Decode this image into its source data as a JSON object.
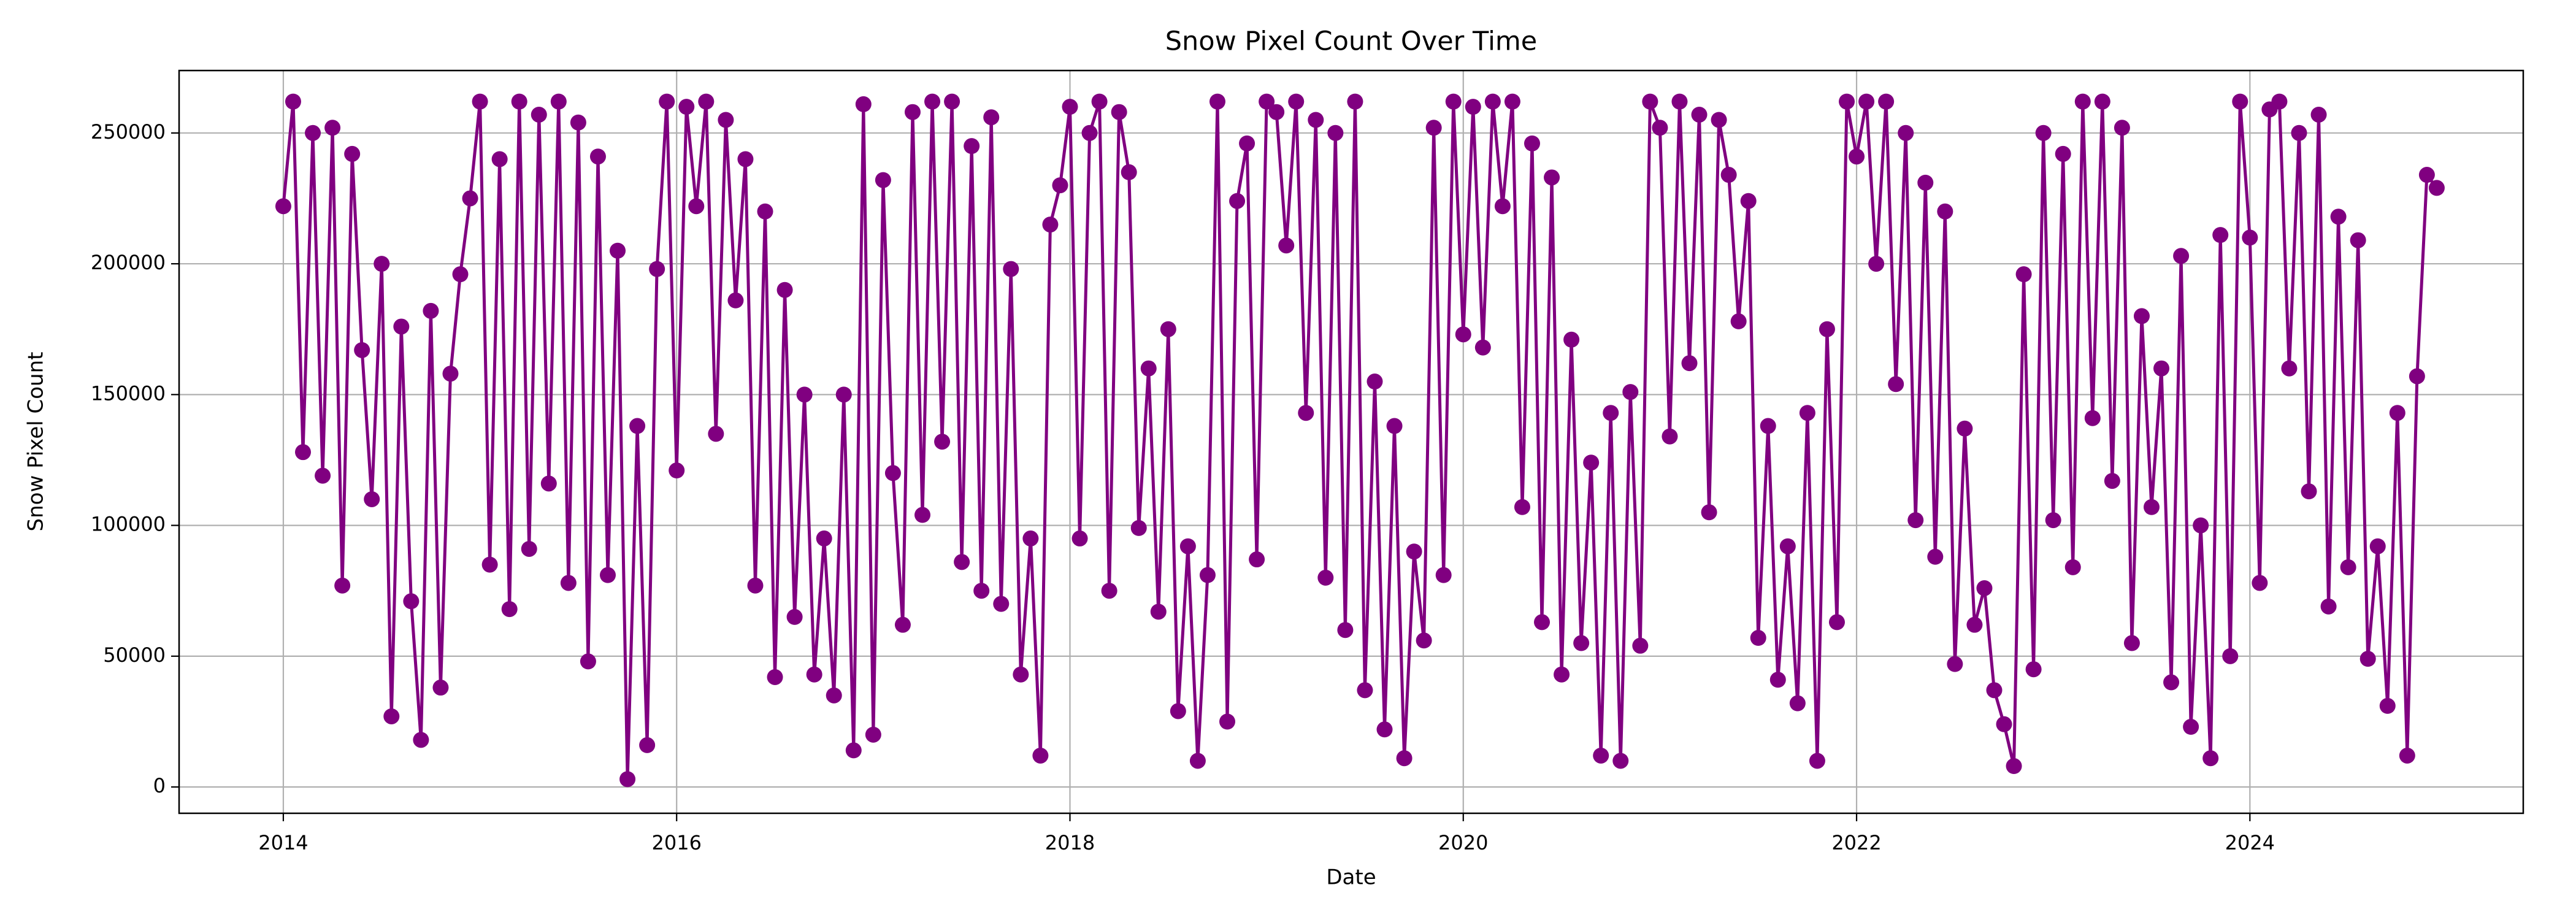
{
  "chart_data": {
    "type": "line",
    "title": "Snow Pixel Count Over Time",
    "x_label": "Date",
    "y_label": "Snow Pixel Count",
    "color": "#800080",
    "grid": true,
    "markers": true,
    "xlim": [
      2013.47,
      2025.39
    ],
    "xticks": [
      2014,
      2016,
      2018,
      2020,
      2022,
      2024
    ],
    "ylim": [
      -10050,
      273870
    ],
    "yticks": [
      0,
      50000,
      100000,
      150000,
      200000,
      250000
    ],
    "x": [
      2014.0,
      2014.05,
      2014.1,
      2014.15,
      2014.2,
      2014.25,
      2014.3,
      2014.35,
      2014.4,
      2014.45,
      2014.5,
      2014.55,
      2014.6,
      2014.65,
      2014.7,
      2014.75,
      2014.8,
      2014.85,
      2014.9,
      2014.95,
      2015.0,
      2015.05,
      2015.1,
      2015.15,
      2015.2,
      2015.25,
      2015.3,
      2015.35,
      2015.4,
      2015.45,
      2015.5,
      2015.55,
      2015.6,
      2015.65,
      2015.7,
      2015.75,
      2015.8,
      2015.85,
      2015.9,
      2015.95,
      2016.0,
      2016.05,
      2016.1,
      2016.15,
      2016.2,
      2016.25,
      2016.3,
      2016.35,
      2016.4,
      2016.45,
      2016.5,
      2016.55,
      2016.6,
      2016.65,
      2016.7,
      2016.75,
      2016.8,
      2016.85,
      2016.9,
      2016.95,
      2017.0,
      2017.05,
      2017.1,
      2017.15,
      2017.2,
      2017.25,
      2017.3,
      2017.35,
      2017.4,
      2017.45,
      2017.5,
      2017.55,
      2017.6,
      2017.65,
      2017.7,
      2017.75,
      2017.8,
      2017.85,
      2017.9,
      2017.95,
      2018.0,
      2018.05,
      2018.1,
      2018.15,
      2018.2,
      2018.25,
      2018.3,
      2018.35,
      2018.4,
      2018.45,
      2018.5,
      2018.55,
      2018.6,
      2018.65,
      2018.7,
      2018.75,
      2018.8,
      2018.85,
      2018.9,
      2018.95,
      2019.0,
      2019.05,
      2019.1,
      2019.15,
      2019.2,
      2019.25,
      2019.3,
      2019.35,
      2019.4,
      2019.45,
      2019.5,
      2019.55,
      2019.6,
      2019.65,
      2019.7,
      2019.75,
      2019.8,
      2019.85,
      2019.9,
      2019.95,
      2020.0,
      2020.05,
      2020.1,
      2020.15,
      2020.2,
      2020.25,
      2020.3,
      2020.35,
      2020.4,
      2020.45,
      2020.5,
      2020.55,
      2020.6,
      2020.65,
      2020.7,
      2020.75,
      2020.8,
      2020.85,
      2020.9,
      2020.95,
      2021.0,
      2021.05,
      2021.1,
      2021.15,
      2021.2,
      2021.25,
      2021.3,
      2021.35,
      2021.4,
      2021.45,
      2021.5,
      2021.55,
      2021.6,
      2021.65,
      2021.7,
      2021.75,
      2021.8,
      2021.85,
      2021.9,
      2021.95,
      2022.0,
      2022.05,
      2022.1,
      2022.15,
      2022.2,
      2022.25,
      2022.3,
      2022.35,
      2022.4,
      2022.45,
      2022.5,
      2022.55,
      2022.6,
      2022.65,
      2022.7,
      2022.75,
      2022.8,
      2022.85,
      2022.9,
      2022.95,
      2023.0,
      2023.05,
      2023.1,
      2023.15,
      2023.2,
      2023.25,
      2023.3,
      2023.35,
      2023.4,
      2023.45,
      2023.5,
      2023.55,
      2023.6,
      2023.65,
      2023.7,
      2023.75,
      2023.8,
      2023.85,
      2023.9,
      2023.95,
      2024.0,
      2024.05,
      2024.1,
      2024.15,
      2024.2,
      2024.25,
      2024.3,
      2024.35,
      2024.4,
      2024.45,
      2024.5,
      2024.55,
      2024.6,
      2024.65,
      2024.7,
      2024.75,
      2024.8,
      2024.85,
      2024.9,
      2024.95
    ],
    "values": [
      222000,
      262000,
      128000,
      250000,
      119000,
      252000,
      77000,
      242000,
      167000,
      110000,
      200000,
      27000,
      176000,
      71000,
      18000,
      182000,
      38000,
      158000,
      196000,
      225000,
      262000,
      85000,
      240000,
      68000,
      262000,
      91000,
      257000,
      116000,
      262000,
      78000,
      254000,
      48000,
      241000,
      81000,
      205000,
      3000,
      138000,
      16000,
      198000,
      262000,
      121000,
      260000,
      222000,
      262000,
      135000,
      255000,
      186000,
      240000,
      77000,
      220000,
      42000,
      190000,
      65000,
      150000,
      43000,
      95000,
      35000,
      150000,
      14000,
      261000,
      20000,
      232000,
      120000,
      62000,
      258000,
      104000,
      262000,
      132000,
      262000,
      86000,
      245000,
      75000,
      256000,
      70000,
      198000,
      43000,
      95000,
      12000,
      215000,
      230000,
      260000,
      95000,
      250000,
      262000,
      75000,
      258000,
      235000,
      99000,
      160000,
      67000,
      175000,
      29000,
      92000,
      10000,
      81000,
      262000,
      25000,
      224000,
      246000,
      87000,
      262000,
      258000,
      207000,
      262000,
      143000,
      255000,
      80000,
      250000,
      60000,
      262000,
      37000,
      155000,
      22000,
      138000,
      11000,
      90000,
      56000,
      252000,
      81000,
      262000,
      173000,
      260000,
      168000,
      262000,
      222000,
      262000,
      107000,
      246000,
      63000,
      233000,
      43000,
      171000,
      55000,
      124000,
      12000,
      143000,
      10000,
      151000,
      54000,
      262000,
      252000,
      134000,
      262000,
      162000,
      257000,
      105000,
      255000,
      234000,
      178000,
      224000,
      57000,
      138000,
      41000,
      92000,
      32000,
      143000,
      10000,
      175000,
      63000,
      262000,
      241000,
      262000,
      200000,
      262000,
      154000,
      250000,
      102000,
      231000,
      88000,
      220000,
      47000,
      137000,
      62000,
      76000,
      37000,
      24000,
      8000,
      196000,
      45000,
      250000,
      102000,
      242000,
      84000,
      262000,
      141000,
      262000,
      117000,
      252000,
      55000,
      180000,
      107000,
      160000,
      40000,
      203000,
      23000,
      100000,
      11000,
      211000,
      50000,
      262000,
      210000,
      78000,
      259000,
      262000,
      160000,
      250000,
      113000,
      257000,
      69000,
      218000,
      84000,
      209000,
      49000,
      92000,
      31000,
      143000,
      12000,
      157000,
      234000,
      229000
    ]
  }
}
